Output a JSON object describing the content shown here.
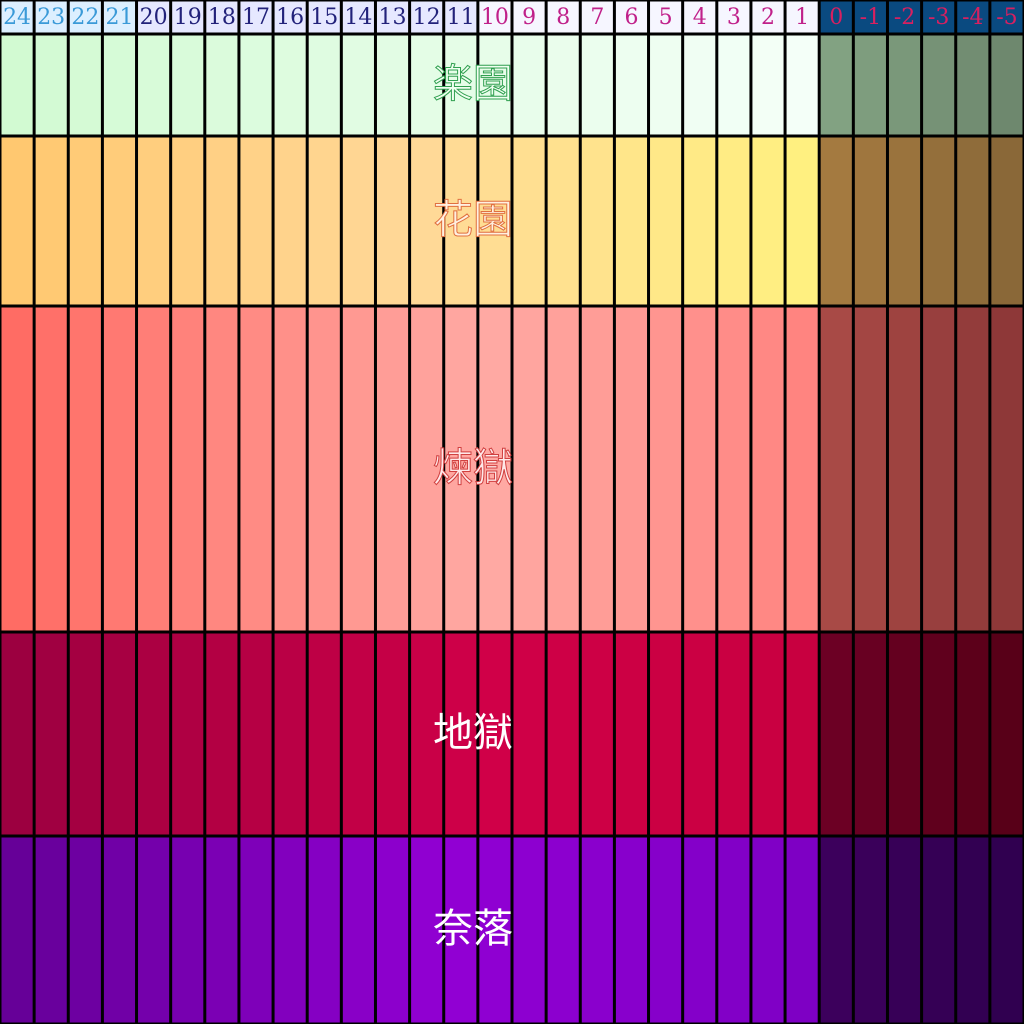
{
  "header": {
    "columns": [
      "24",
      "23",
      "22",
      "21",
      "20",
      "19",
      "18",
      "17",
      "16",
      "15",
      "14",
      "13",
      "12",
      "11",
      "10",
      "9",
      "8",
      "7",
      "6",
      "5",
      "4",
      "3",
      "2",
      "1",
      "0",
      "-1",
      "-2",
      "-3",
      "-4",
      "-5"
    ]
  },
  "bands": [
    {
      "label": "楽園"
    },
    {
      "label": "花園"
    },
    {
      "label": "煉獄"
    },
    {
      "label": "地獄"
    },
    {
      "label": "奈落"
    }
  ]
}
